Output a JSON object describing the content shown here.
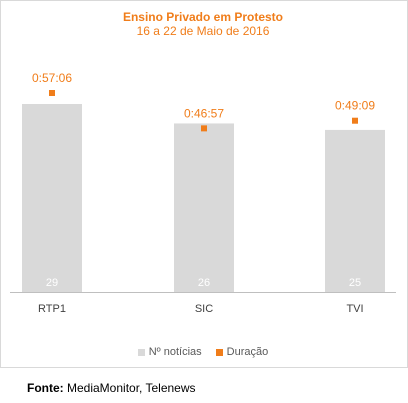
{
  "chart_data": {
    "type": "bar",
    "title": "Ensino Privado em Protesto",
    "subtitle": "16 a 22 de Maio de 2016",
    "categories": [
      "RTP1",
      "SIC",
      "TVI"
    ],
    "series": [
      {
        "name": "Nº notícias",
        "type": "bar",
        "values": [
          29,
          26,
          25
        ],
        "color": "#d9d9d9"
      },
      {
        "name": "Duração",
        "type": "marker",
        "values": [
          "0:57:06",
          "0:46:57",
          "0:49:09"
        ],
        "color": "#f07d1a"
      }
    ],
    "legend_position": "bottom",
    "grid": false
  },
  "footer": {
    "label": "Fonte:",
    "text": "MediaMonitor, Telenews"
  }
}
